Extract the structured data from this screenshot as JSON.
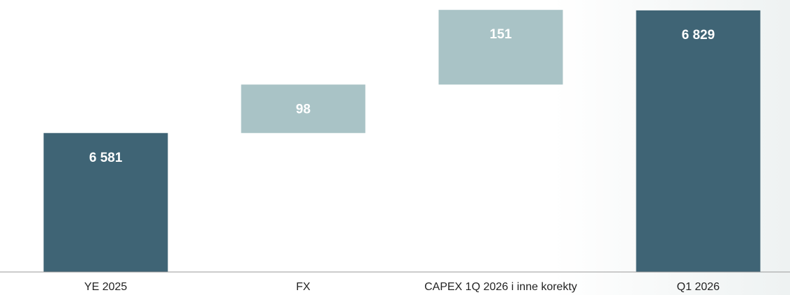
{
  "chart_data": {
    "type": "waterfall",
    "categories": [
      "YE 2025",
      "FX",
      "CAPEX 1Q 2026 i inne korekty",
      "Q1 2026"
    ],
    "values": [
      6581,
      98,
      151,
      6829
    ],
    "value_labels": [
      "6 581",
      "98",
      "151",
      "6 829"
    ],
    "total": [
      true,
      false,
      false,
      true
    ],
    "colors": {
      "total": "#3f6475",
      "delta": "#a9c3c6"
    },
    "ylim": [
      6300,
      6850
    ]
  }
}
